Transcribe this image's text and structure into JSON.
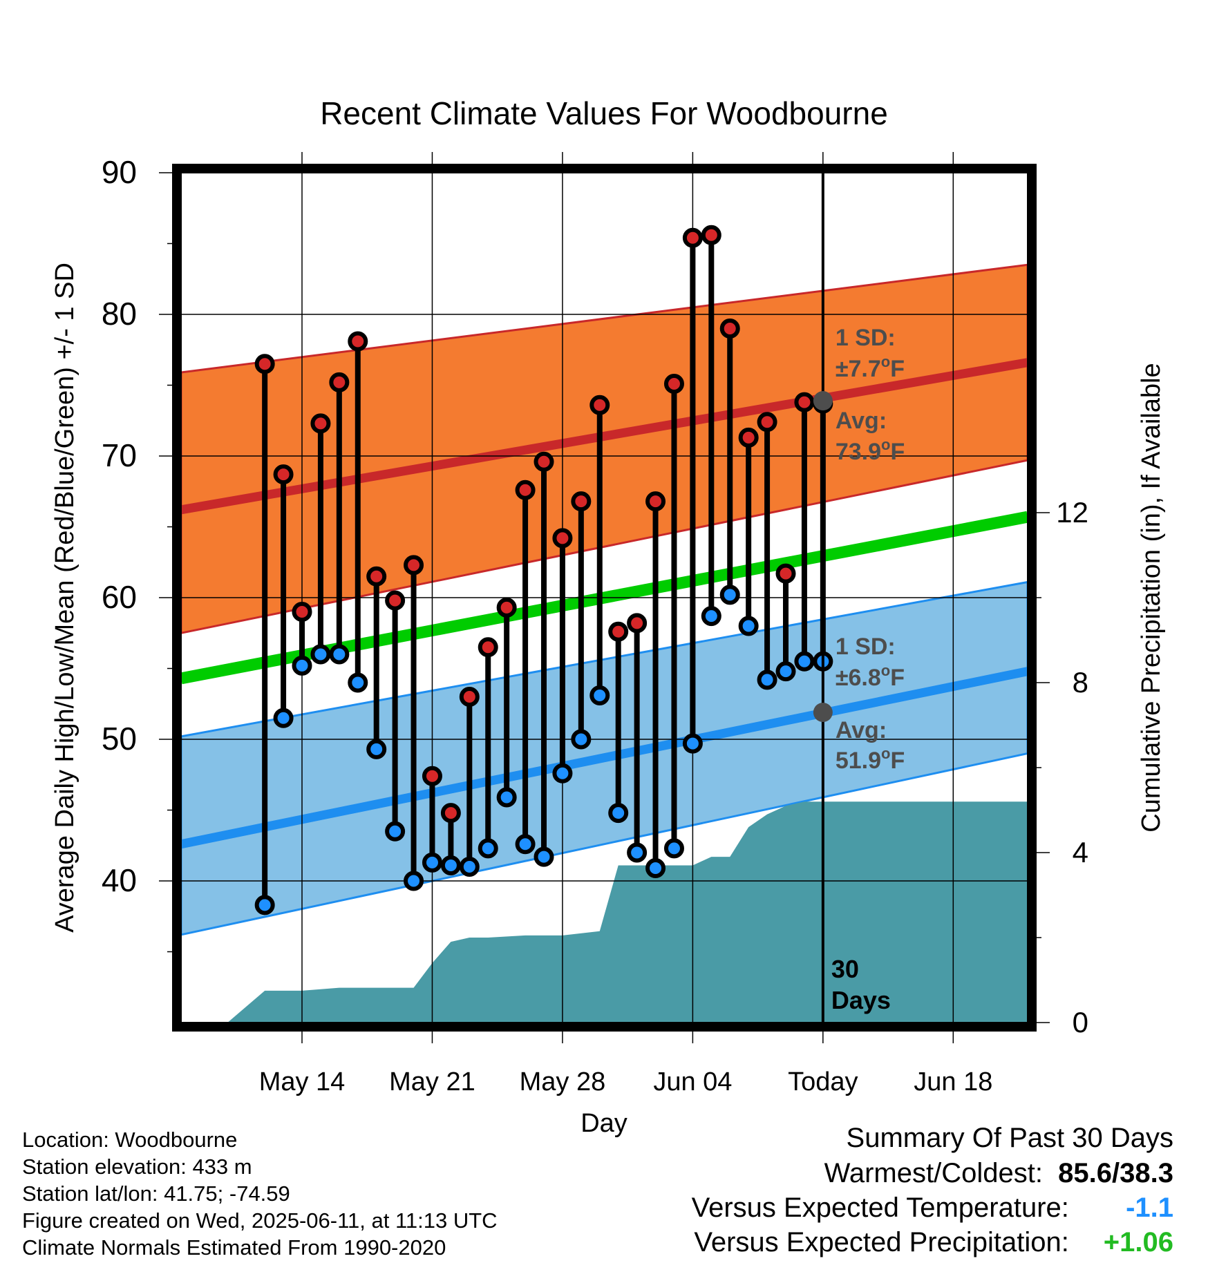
{
  "chart_data": {
    "type": "line",
    "title": "Recent Climate Values For Woodbourne",
    "xlabel": "Day",
    "ylabel": "Average Daily High/Low/Mean (Red/Blue/Green) +/- 1 SD",
    "y2label": "Cumulative Precipitation (in), If Available",
    "ylim": [
      30,
      90
    ],
    "y2lim": [
      0,
      20
    ],
    "yticks": [
      40,
      50,
      60,
      70,
      80,
      90
    ],
    "y2ticks": [
      0,
      4,
      8,
      12
    ],
    "xrange_days": [
      -34.5,
      11
    ],
    "xticks": [
      {
        "day": -28,
        "label": "May 14"
      },
      {
        "day": -21,
        "label": "May 21"
      },
      {
        "day": -14,
        "label": "May 28"
      },
      {
        "day": -7,
        "label": "Jun 04"
      },
      {
        "day": 0,
        "label": "Today"
      },
      {
        "day": 7,
        "label": "Jun 18"
      }
    ],
    "daily": {
      "dates": [
        "2025-05-11",
        "2025-05-12",
        "2025-05-13",
        "2025-05-14",
        "2025-05-15",
        "2025-05-16",
        "2025-05-17",
        "2025-05-18",
        "2025-05-19",
        "2025-05-20",
        "2025-05-21",
        "2025-05-22",
        "2025-05-23",
        "2025-05-24",
        "2025-05-25",
        "2025-05-26",
        "2025-05-27",
        "2025-05-28",
        "2025-05-29",
        "2025-05-30",
        "2025-05-31",
        "2025-06-01",
        "2025-06-02",
        "2025-06-03",
        "2025-06-04",
        "2025-06-05",
        "2025-06-06",
        "2025-06-07",
        "2025-06-08",
        "2025-06-09",
        "2025-06-10"
      ],
      "high": [
        76.5,
        68.7,
        59.0,
        72.3,
        75.2,
        78.1,
        61.5,
        59.8,
        62.3,
        47.4,
        44.8,
        53.0,
        56.5,
        59.3,
        67.6,
        69.6,
        64.2,
        66.8,
        73.6,
        57.6,
        58.2,
        66.8,
        75.1,
        85.4,
        85.6,
        79.0,
        71.3,
        72.4,
        61.7,
        73.8,
        73.7
      ],
      "low": [
        38.3,
        51.5,
        55.2,
        56.0,
        56.0,
        54.0,
        49.3,
        43.5,
        40.0,
        41.3,
        41.1,
        41.0,
        42.3,
        45.9,
        42.6,
        41.7,
        47.6,
        50.0,
        53.1,
        44.8,
        42.0,
        40.9,
        42.3,
        49.7,
        58.7,
        60.2,
        58.0,
        54.2,
        54.8,
        55.5,
        55.5
      ]
    },
    "normals": {
      "days": [
        -34.5,
        11
      ],
      "avg_high": [
        66.2,
        76.6
      ],
      "high_upper": [
        75.9,
        83.5
      ],
      "high_lower": [
        57.5,
        69.7
      ],
      "avg_mean": [
        54.3,
        65.7
      ],
      "avg_low": [
        42.6,
        54.8
      ],
      "low_upper": [
        50.2,
        61.1
      ],
      "low_lower": [
        36.2,
        49.0
      ]
    },
    "precip_cumulative": {
      "days": [
        -32,
        -30,
        -28,
        -26,
        -24,
        -22,
        -21,
        -20,
        -19,
        -18,
        -16,
        -14,
        -12,
        -11,
        -10,
        -9,
        -8,
        -7,
        -6,
        -5,
        -4,
        -3,
        -2,
        -1,
        0,
        11
      ],
      "values": [
        0,
        0.75,
        0.75,
        0.82,
        0.82,
        0.82,
        1.4,
        1.9,
        2.0,
        2.0,
        2.05,
        2.05,
        2.15,
        3.7,
        3.7,
        3.7,
        3.7,
        3.7,
        3.9,
        3.9,
        4.6,
        4.9,
        5.1,
        5.2,
        5.2,
        5.2
      ]
    },
    "annotations": {
      "high_sd_label": "1 SD:",
      "high_sd_value": "±7.7",
      "high_avg_label": "Avg:",
      "high_avg_value": "73.9",
      "low_sd_label": "1 SD:",
      "low_sd_value": "±6.8",
      "low_avg_label": "Avg:",
      "low_avg_value": "51.9",
      "degree_unit": "o",
      "temp_unit": "F",
      "window_count": "30",
      "window_unit": "Days",
      "today_avg_high": 73.9,
      "today_avg_low": 51.9
    },
    "colors": {
      "high_band": "#f47b30",
      "high_line": "#c8282a",
      "mean_line": "#00cc00",
      "low_band": "#85c1e7",
      "low_line": "#1e8ef0",
      "precip": "#4a9ba6",
      "high_marker": "#d62728",
      "low_marker": "#1e90ff",
      "annotation": "#4d4d4d",
      "today_marker": "#4d4d4d"
    }
  },
  "meta": {
    "location": "Location: Woodbourne",
    "elevation": "Station elevation: 433 m",
    "latlon": "Station lat/lon: 41.75; -74.59",
    "created": "Figure created on Wed, 2025-06-11, at 11:13 UTC",
    "normals": "Climate Normals Estimated From 1990-2020"
  },
  "summary": {
    "title": "Summary Of Past 30 Days",
    "warm_cold_label": "Warmest/Coldest:",
    "warm_cold_value": "85.6/38.3",
    "temp_label": "Versus Expected Temperature:",
    "temp_value": "-1.1",
    "temp_color": "#1e90ff",
    "precip_label": "Versus Expected Precipitation:",
    "precip_value": "+1.06",
    "precip_color": "#22bb22"
  }
}
